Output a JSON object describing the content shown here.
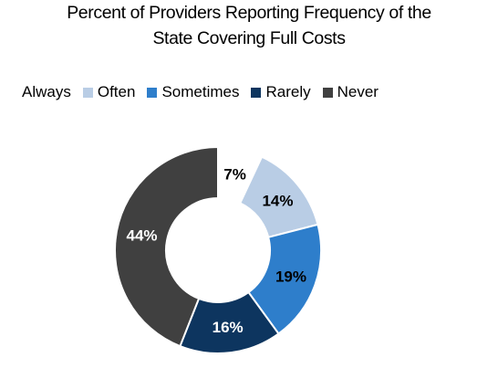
{
  "chart_data": {
    "type": "pie",
    "variant": "donut",
    "title_lines": [
      "Percent of Providers Reporting Frequency of the",
      "State Covering Full Costs"
    ],
    "categories": [
      "Always",
      "Often",
      "Sometimes",
      "Rarely",
      "Never"
    ],
    "values": [
      7,
      14,
      19,
      16,
      44
    ],
    "data_labels": [
      "7%",
      "14%",
      "19%",
      "16%",
      "44%"
    ],
    "colors": [
      "#ffffff",
      "#b9cde5",
      "#2e7ecb",
      "#0d355f",
      "#404040"
    ],
    "label_colors": [
      "#000000",
      "#000000",
      "#000000",
      "#ffffff",
      "#ffffff"
    ],
    "legend_position": "top-left",
    "grid": false
  }
}
